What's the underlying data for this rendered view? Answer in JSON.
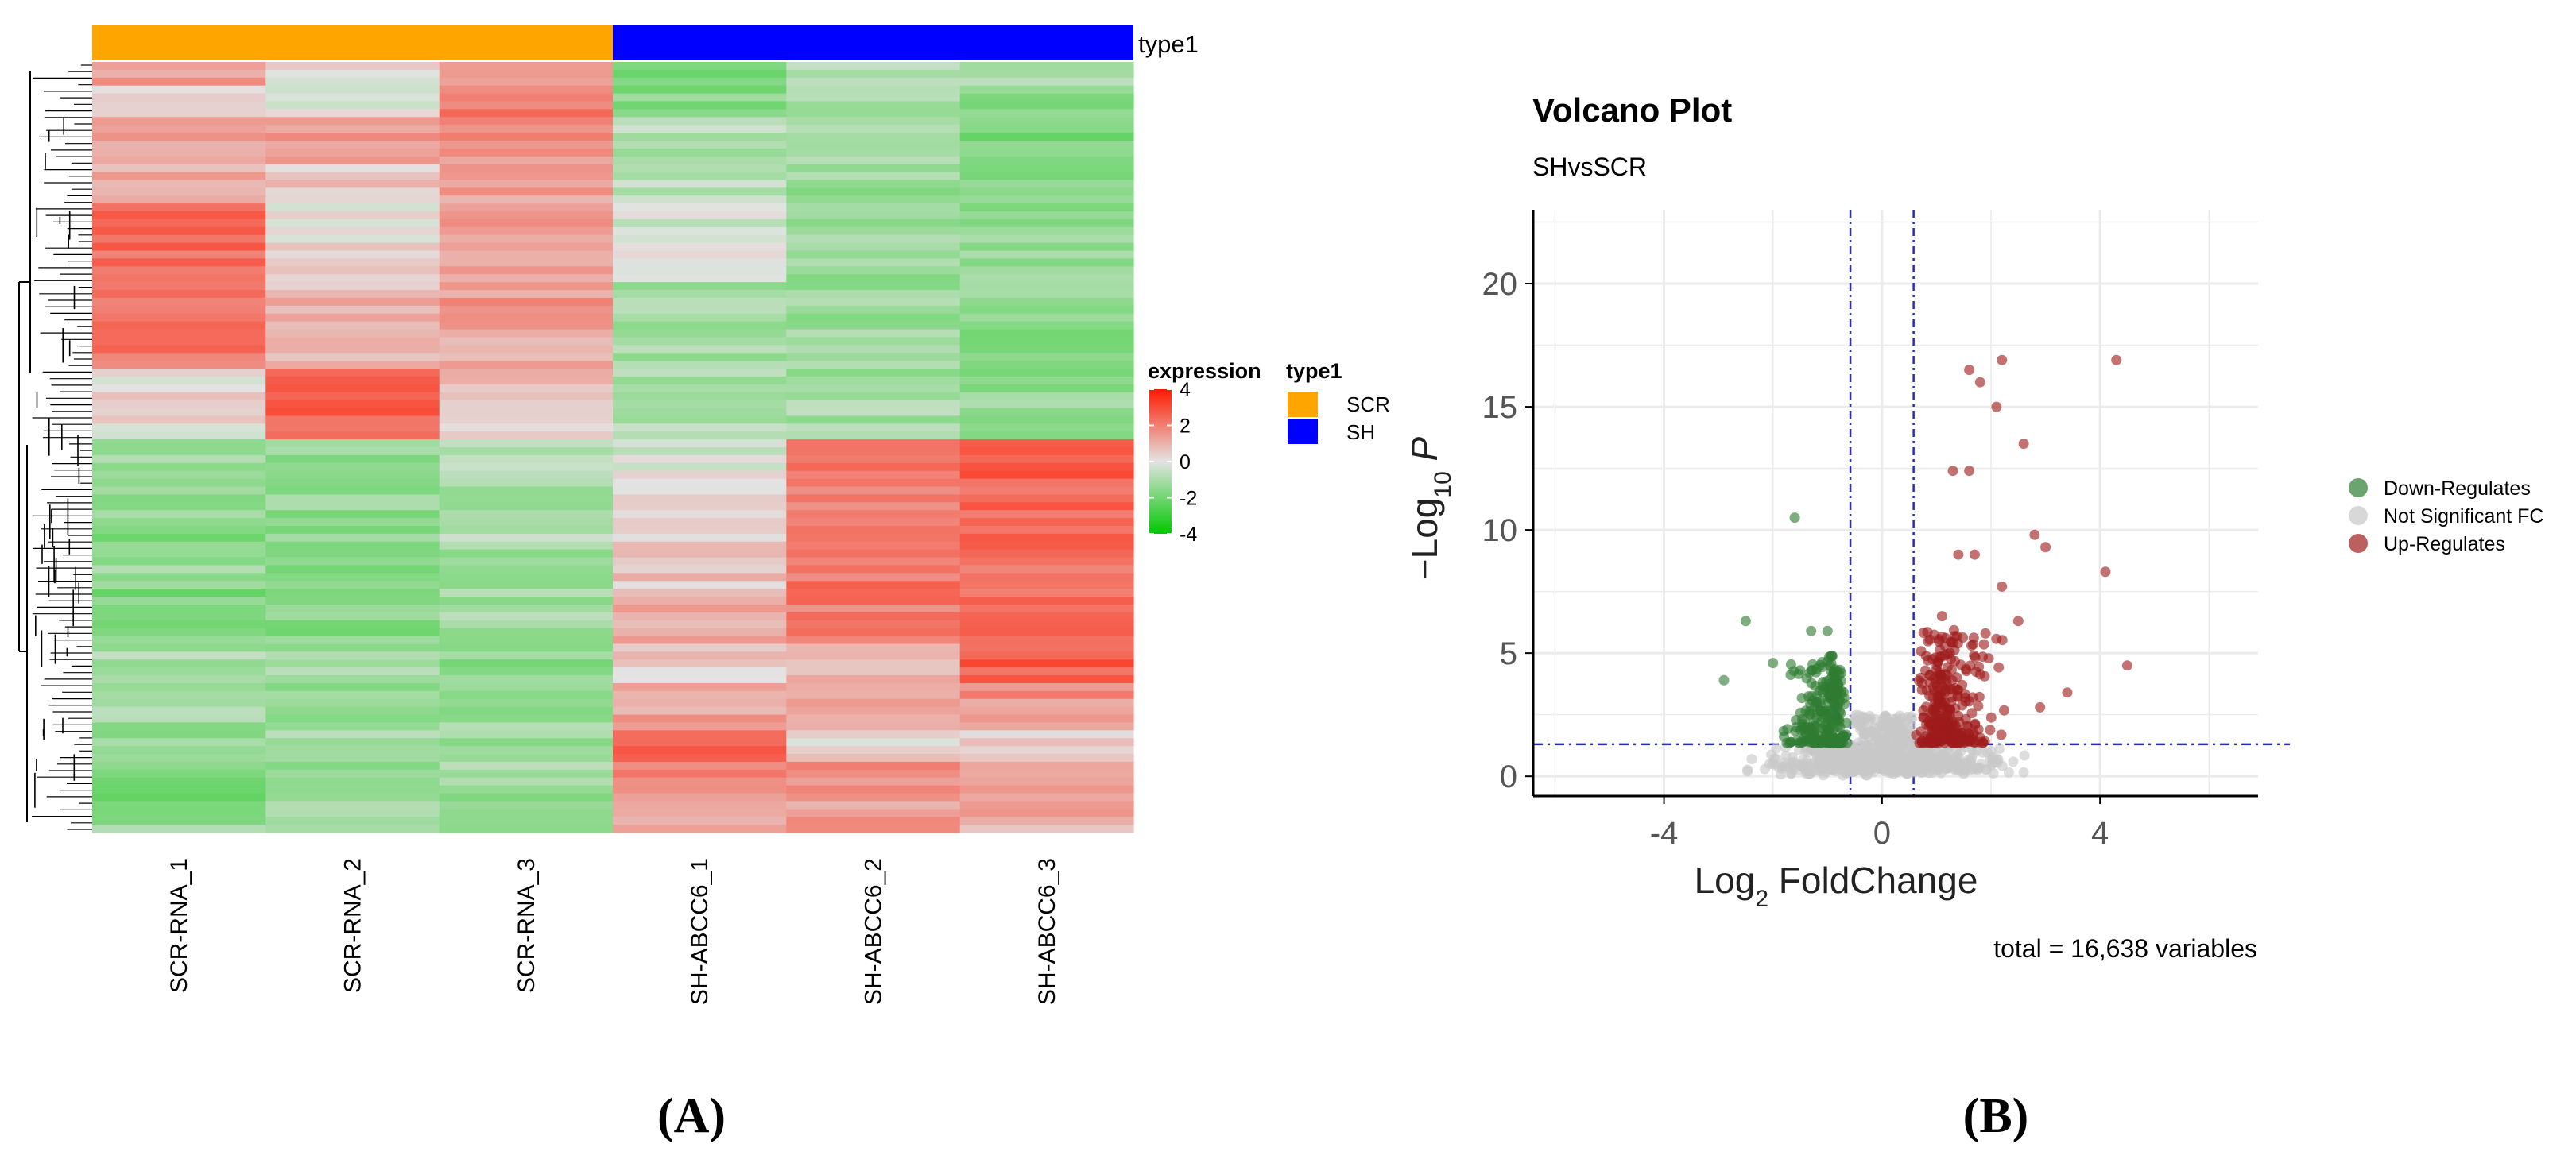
{
  "panel_labels": {
    "a": "(A)",
    "b": "(B)"
  },
  "colors": {
    "scr": "#FFA500",
    "sh": "#0000FF",
    "down": "#2E7D32",
    "ns": "#C8C8C8",
    "up": "#9E1B1B",
    "threshold": "#2A2ABF",
    "heat_low": "#00C800",
    "heat_mid": "#E3E3E3",
    "heat_high": "#FF1A00"
  },
  "chart_data": [
    {
      "type": "heatmap",
      "annotation_title": "type1",
      "columns": [
        "SCR-RNA_1",
        "SCR-RNA_2",
        "SCR-RNA_3",
        "SH-ABCC6_1",
        "SH-ABCC6_2",
        "SH-ABCC6_3"
      ],
      "column_groups": [
        "SCR",
        "SCR",
        "SCR",
        "SH",
        "SH",
        "SH"
      ],
      "row_blocks": [
        {
          "rows": 3,
          "values": [
            1.3,
            0.1,
            1.3,
            -1.8,
            -0.7,
            -1.1
          ]
        },
        {
          "rows": 4,
          "values": [
            0.3,
            -0.3,
            1.9,
            -1.6,
            -0.9,
            -1.5
          ]
        },
        {
          "rows": 6,
          "values": [
            1.1,
            1.5,
            1.6,
            -0.8,
            -1.2,
            -1.7
          ]
        },
        {
          "rows": 5,
          "values": [
            1.0,
            0.5,
            1.2,
            -0.6,
            -1.3,
            -1.5
          ]
        },
        {
          "rows": 10,
          "values": [
            2.4,
            0.2,
            1.4,
            -0.3,
            -1.3,
            -1.4
          ]
        },
        {
          "rows": 6,
          "values": [
            2.3,
            0.9,
            1.5,
            -1.2,
            -1.3,
            -1.6
          ]
        },
        {
          "rows": 5,
          "values": [
            2.2,
            0.7,
            1.1,
            -1.0,
            -1.2,
            -1.9
          ]
        },
        {
          "rows": 9,
          "values": [
            0.2,
            2.7,
            0.6,
            -0.9,
            -1.1,
            -1.4
          ]
        },
        {
          "rows": 5,
          "values": [
            -1.1,
            -1.3,
            -1.0,
            -0.2,
            2.2,
            2.9
          ]
        },
        {
          "rows": 8,
          "values": [
            -1.6,
            -1.4,
            -0.9,
            0.2,
            1.9,
            2.5
          ]
        },
        {
          "rows": 6,
          "values": [
            -1.4,
            -1.8,
            -1.2,
            0.6,
            2.2,
            2.4
          ]
        },
        {
          "rows": 7,
          "values": [
            -1.7,
            -1.6,
            -1.1,
            1.2,
            2.0,
            2.2
          ]
        },
        {
          "rows": 5,
          "values": [
            -1.0,
            -1.2,
            -1.5,
            0.4,
            1.0,
            2.6
          ]
        },
        {
          "rows": 6,
          "values": [
            -1.2,
            -1.4,
            -1.3,
            1.2,
            1.1,
            1.6
          ]
        },
        {
          "rows": 4,
          "values": [
            -1.5,
            -1.1,
            -1.4,
            2.6,
            0.3,
            0.4
          ]
        },
        {
          "rows": 5,
          "values": [
            -1.8,
            -1.6,
            -1.2,
            1.8,
            1.5,
            1.6
          ]
        },
        {
          "rows": 4,
          "values": [
            -1.3,
            -1.0,
            -1.5,
            1.3,
            1.4,
            1.1
          ]
        }
      ],
      "legend": {
        "expression": {
          "title": "expression",
          "ticks": [
            4,
            2,
            0,
            -2,
            -4
          ],
          "range": [
            -4,
            4
          ]
        },
        "type": {
          "title": "type1",
          "entries": [
            "SCR",
            "SH"
          ]
        }
      }
    },
    {
      "type": "scatter",
      "title": "Volcano Plot",
      "subtitle": "SHvsSCR",
      "xlabel": "Log2 FoldChange",
      "ylabel": "-Log10 P",
      "xlim": [
        -6.4,
        6.9
      ],
      "ylim": [
        -0.8,
        23
      ],
      "xticks": [
        -4,
        0,
        4
      ],
      "yticks": [
        0,
        5,
        10,
        15,
        20
      ],
      "fc_cutoff": 0.58,
      "p_cutoff_log": 1.3,
      "caption": "total = 16,638 variables",
      "legend": [
        "Down-Regulates",
        "Not Significant FC",
        "Up-Regulates"
      ],
      "notable_points": [
        {
          "x": -1.6,
          "y": 10.5,
          "group": "down"
        },
        {
          "x": -2.5,
          "y": 6.3,
          "group": "down"
        },
        {
          "x": -1.3,
          "y": 5.9,
          "group": "down"
        },
        {
          "x": -1.0,
          "y": 5.9,
          "group": "down"
        },
        {
          "x": -2.9,
          "y": 3.9,
          "group": "down"
        },
        {
          "x": -2.0,
          "y": 4.6,
          "group": "down"
        },
        {
          "x": 1.6,
          "y": 16.5,
          "group": "up"
        },
        {
          "x": 2.2,
          "y": 16.9,
          "group": "up"
        },
        {
          "x": 1.8,
          "y": 16.0,
          "group": "up"
        },
        {
          "x": 2.1,
          "y": 15.0,
          "group": "up"
        },
        {
          "x": 2.6,
          "y": 13.5,
          "group": "up"
        },
        {
          "x": 1.3,
          "y": 12.4,
          "group": "up"
        },
        {
          "x": 1.6,
          "y": 12.4,
          "group": "up"
        },
        {
          "x": 4.3,
          "y": 16.9,
          "group": "up"
        },
        {
          "x": 2.8,
          "y": 9.8,
          "group": "up"
        },
        {
          "x": 3.0,
          "y": 9.3,
          "group": "up"
        },
        {
          "x": 4.1,
          "y": 8.3,
          "group": "up"
        },
        {
          "x": 4.5,
          "y": 4.5,
          "group": "up"
        },
        {
          "x": 3.4,
          "y": 3.4,
          "group": "up"
        },
        {
          "x": 1.7,
          "y": 9.0,
          "group": "up"
        },
        {
          "x": 1.4,
          "y": 9.0,
          "group": "up"
        },
        {
          "x": 2.2,
          "y": 7.7,
          "group": "up"
        },
        {
          "x": 1.1,
          "y": 6.5,
          "group": "up"
        },
        {
          "x": 2.5,
          "y": 6.3,
          "group": "up"
        },
        {
          "x": 1.9,
          "y": 5.8,
          "group": "up"
        },
        {
          "x": 2.9,
          "y": 2.8,
          "group": "up"
        }
      ]
    }
  ]
}
